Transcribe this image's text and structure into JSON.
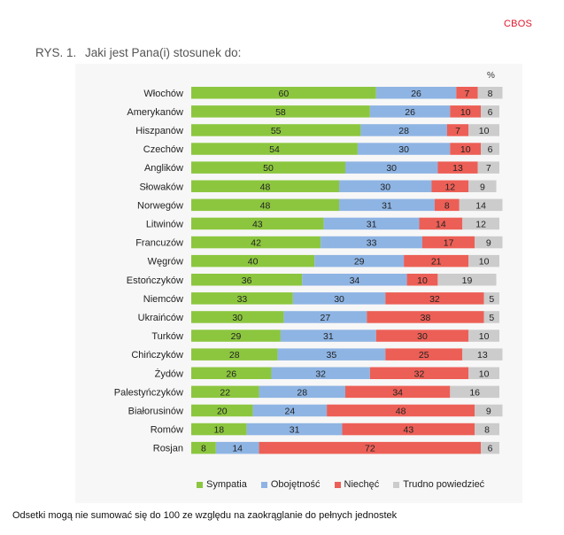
{
  "brand": "CBOS",
  "figure": {
    "number": "RYS. 1.",
    "title": "Jaki jest Pana(i) stosunek do:"
  },
  "unit_label": "%",
  "footnote": "Odsetki mogą nie sumować się do 100 ze względu na zaokrąglanie do pełnych jednostek",
  "chart_data": {
    "type": "bar",
    "orientation": "horizontal",
    "stacked": true,
    "categories": [
      "Włochów",
      "Amerykanów",
      "Hiszpanów",
      "Czechów",
      "Anglików",
      "Słowaków",
      "Norwegów",
      "Litwinów",
      "Francuzów",
      "Węgrów",
      "Estończyków",
      "Niemców",
      "Ukraińców",
      "Turków",
      "Chińczyków",
      "Żydów",
      "Palestyńczyków",
      "Białorusinów",
      "Romów",
      "Rosjan"
    ],
    "series": [
      {
        "name": "Sympatia",
        "color": "#8cc63f",
        "values": [
          60,
          58,
          55,
          54,
          50,
          48,
          48,
          43,
          42,
          40,
          36,
          33,
          30,
          29,
          28,
          26,
          22,
          20,
          18,
          8
        ]
      },
      {
        "name": "Obojętność",
        "color": "#8eb4e3",
        "values": [
          26,
          26,
          28,
          30,
          30,
          30,
          31,
          31,
          33,
          29,
          34,
          30,
          27,
          31,
          35,
          32,
          28,
          24,
          31,
          14
        ]
      },
      {
        "name": "Niechęć",
        "color": "#ec5f56",
        "values": [
          7,
          10,
          7,
          10,
          13,
          12,
          8,
          14,
          17,
          21,
          10,
          32,
          38,
          30,
          25,
          32,
          34,
          48,
          43,
          72
        ]
      },
      {
        "name": "Trudno powiedzieć",
        "color": "#cccccc",
        "values": [
          8,
          6,
          10,
          6,
          7,
          9,
          14,
          12,
          9,
          10,
          19,
          5,
          5,
          10,
          13,
          10,
          16,
          9,
          8,
          6
        ]
      }
    ],
    "legend_position": "bottom",
    "grid": false
  }
}
